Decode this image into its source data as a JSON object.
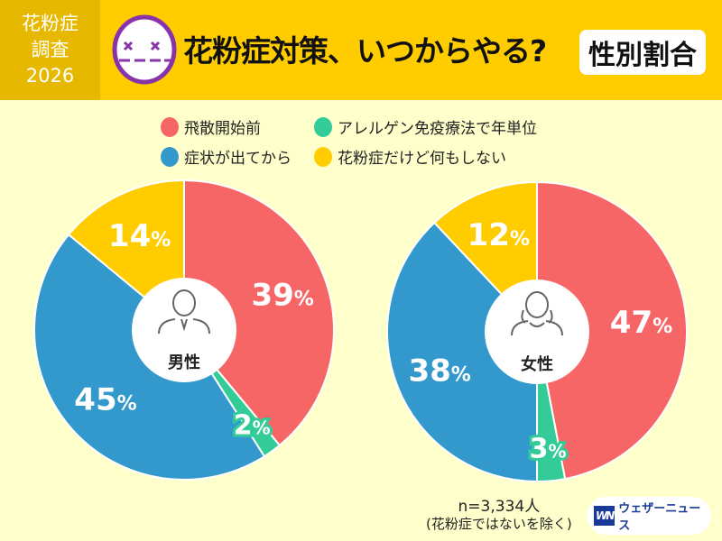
{
  "header": {
    "survey_line1": "花粉症",
    "survey_line2": "調査",
    "survey_year": "2026",
    "title": "花粉症対策、いつからやる?",
    "badge": "性別割合"
  },
  "colors": {
    "red": "#f76666",
    "green": "#33cc99",
    "blue": "#3399cc",
    "yellow": "#ffcc00",
    "header": "#ffcc00",
    "background": "#ffffcc"
  },
  "chart_data": [
    {
      "type": "pie",
      "title": "男性",
      "categories": [
        "飛散開始前",
        "アレルゲン免疫療法で年単位",
        "症状が出てから",
        "花粉症だけど何もしない"
      ],
      "values": [
        39,
        2,
        45,
        14
      ],
      "labels": [
        "39%",
        "2%",
        "45%",
        "14%"
      ],
      "legend": "top"
    },
    {
      "type": "pie",
      "title": "女性",
      "categories": [
        "飛散開始前",
        "アレルゲン免疫療法で年単位",
        "症状が出てから",
        "花粉症だけど何もしない"
      ],
      "values": [
        47,
        3,
        38,
        12
      ],
      "labels": [
        "47%",
        "3%",
        "38%",
        "12%"
      ],
      "legend": "top"
    }
  ],
  "legend": [
    "飛散開始前",
    "アレルゲン免疫療法で年単位",
    "症状が出てから",
    "花粉症だけど何もしない"
  ],
  "footer": {
    "sample": "n=3,334人",
    "sample_note": "(花粉症ではないを除く)",
    "brand": "ウェザーニュース",
    "brand_mark": "WN"
  }
}
